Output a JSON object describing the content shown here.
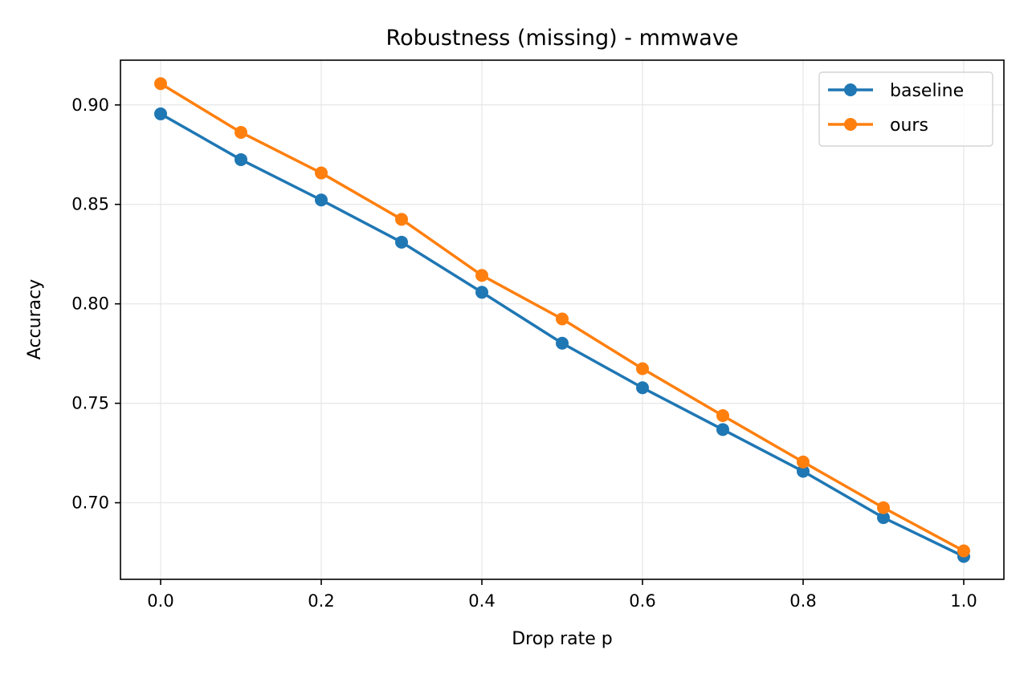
{
  "chart_data": {
    "type": "line",
    "title": "Robustness (missing) - mmwave",
    "xlabel": "Drop rate p",
    "ylabel": "Accuracy",
    "x": [
      0.0,
      0.1,
      0.2,
      0.3,
      0.4,
      0.5,
      0.6,
      0.7,
      0.8,
      0.9,
      1.0
    ],
    "xlim": [
      -0.05,
      1.05
    ],
    "ylim": [
      0.6615,
      0.9225
    ],
    "xticks": [
      0.0,
      0.2,
      0.4,
      0.6,
      0.8,
      1.0
    ],
    "xtick_labels": [
      "0.0",
      "0.2",
      "0.4",
      "0.6",
      "0.8",
      "1.0"
    ],
    "yticks": [
      0.7,
      0.75,
      0.8,
      0.85,
      0.9
    ],
    "ytick_labels": [
      "0.70",
      "0.75",
      "0.80",
      "0.85",
      "0.90"
    ],
    "grid": true,
    "legend_position": "top-right",
    "series": [
      {
        "name": "baseline",
        "color": "#1f77b4",
        "values": [
          0.8955,
          0.8725,
          0.8522,
          0.831,
          0.8058,
          0.7802,
          0.7578,
          0.7368,
          0.7158,
          0.6925,
          0.673
        ]
      },
      {
        "name": "ours",
        "color": "#ff7f0e",
        "values": [
          0.9107,
          0.8862,
          0.8658,
          0.8425,
          0.8143,
          0.7924,
          0.7674,
          0.7438,
          0.7205,
          0.6975,
          0.6758
        ]
      }
    ]
  }
}
